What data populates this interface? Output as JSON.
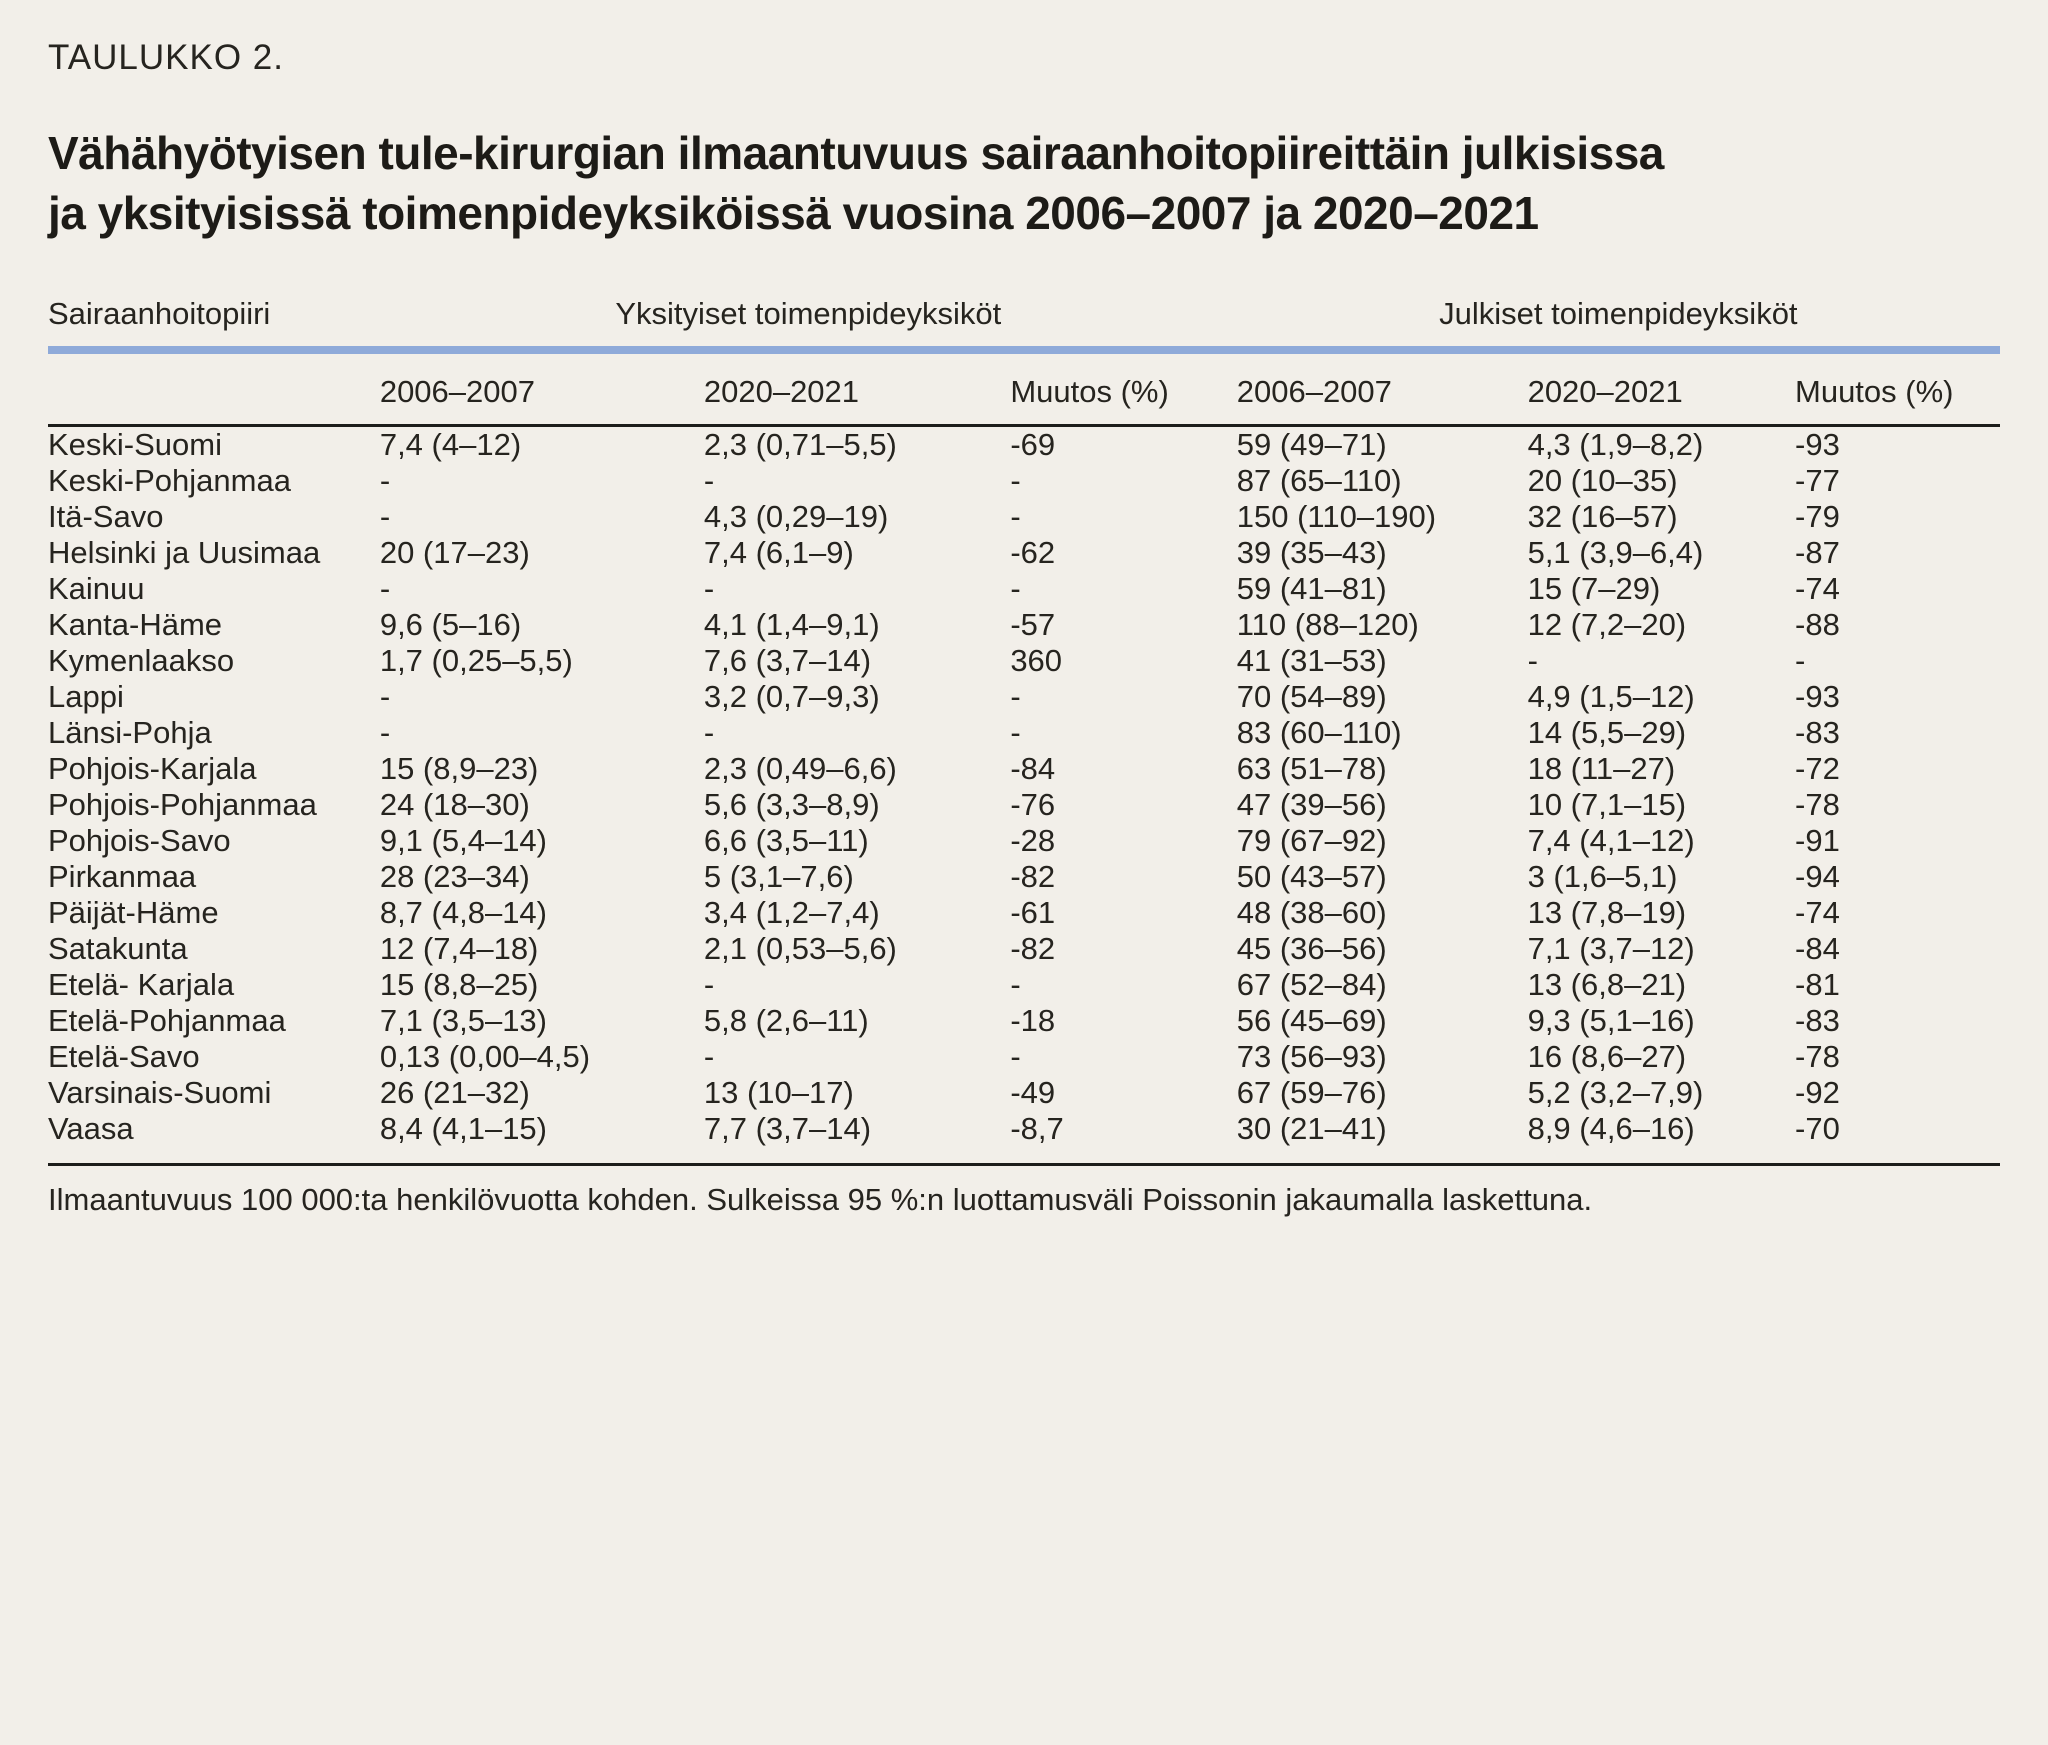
{
  "page": {
    "background_color": "#f2efe9",
    "text_color": "#1d1d1b",
    "accent_blue": "#8faad9",
    "table_label": "TAULUKKO 2.",
    "title_line1": "Vähähyötyisen tule-kirurgian ilmaantuvuus sairaanhoitopiireittäin julkisissa",
    "title_line2": "ja yksityisissä toimenpideyksiköissä vuosina 2006–2007 ja 2020–2021"
  },
  "table": {
    "region_header": "Sairaanhoitopiiri",
    "group_headers": {
      "private": "Yksityiset toimenpideyksiköt",
      "public": "Julkiset toimenpideyksiköt"
    },
    "sub_headers": [
      "2006–2007",
      "2020–2021",
      "Muutos (%)",
      "2006–2007",
      "2020–2021",
      "Muutos (%)"
    ],
    "rows": [
      [
        "Keski-Suomi",
        "7,4 (4–12)",
        "2,3 (0,71–5,5)",
        "-69",
        "59 (49–71)",
        "4,3 (1,9–8,2)",
        "-93"
      ],
      [
        "Keski-Pohjanmaa",
        "-",
        "-",
        "-",
        "87 (65–110)",
        "20 (10–35)",
        "-77"
      ],
      [
        "Itä-Savo",
        "-",
        "4,3 (0,29–19)",
        "-",
        "150 (110–190)",
        "32 (16–57)",
        "-79"
      ],
      [
        "Helsinki ja Uusimaa",
        "20 (17–23)",
        "7,4 (6,1–9)",
        "-62",
        "39 (35–43)",
        "5,1 (3,9–6,4)",
        "-87"
      ],
      [
        "Kainuu",
        "-",
        "-",
        "-",
        "59 (41–81)",
        "15 (7–29)",
        "-74"
      ],
      [
        "Kanta-Häme",
        "9,6 (5–16)",
        "4,1 (1,4–9,1)",
        "-57",
        "110 (88–120)",
        "12 (7,2–20)",
        "-88"
      ],
      [
        "Kymenlaakso",
        "1,7 (0,25–5,5)",
        "7,6 (3,7–14)",
        "360",
        "41 (31–53)",
        "-",
        "-"
      ],
      [
        "Lappi",
        "-",
        "3,2 (0,7–9,3)",
        "-",
        "70 (54–89)",
        "4,9 (1,5–12)",
        "-93"
      ],
      [
        "Länsi-Pohja",
        "-",
        "-",
        "-",
        "83 (60–110)",
        "14 (5,5–29)",
        "-83"
      ],
      [
        "Pohjois-Karjala",
        "15 (8,9–23)",
        "2,3 (0,49–6,6)",
        "-84",
        "63 (51–78)",
        "18 (11–27)",
        "-72"
      ],
      [
        "Pohjois-Pohjanmaa",
        "24 (18–30)",
        "5,6 (3,3–8,9)",
        "-76",
        "47 (39–56)",
        "10 (7,1–15)",
        "-78"
      ],
      [
        "Pohjois-Savo",
        "9,1 (5,4–14)",
        "6,6 (3,5–11)",
        "-28",
        "79 (67–92)",
        "7,4 (4,1–12)",
        "-91"
      ],
      [
        "Pirkanmaa",
        "28 (23–34)",
        "5 (3,1–7,6)",
        "-82",
        "50 (43–57)",
        "3 (1,6–5,1)",
        "-94"
      ],
      [
        "Päijät-Häme",
        "8,7 (4,8–14)",
        "3,4 (1,2–7,4)",
        "-61",
        "48 (38–60)",
        "13 (7,8–19)",
        "-74"
      ],
      [
        "Satakunta",
        "12 (7,4–18)",
        "2,1 (0,53–5,6)",
        "-82",
        "45 (36–56)",
        "7,1 (3,7–12)",
        "-84"
      ],
      [
        "Etelä- Karjala",
        "15 (8,8–25)",
        "-",
        "-",
        "67 (52–84)",
        "13 (6,8–21)",
        "-81"
      ],
      [
        "Etelä-Pohjanmaa",
        "7,1 (3,5–13)",
        "5,8 (2,6–11)",
        "-18",
        "56 (45–69)",
        "9,3 (5,1–16)",
        "-83"
      ],
      [
        "Etelä-Savo",
        "0,13 (0,00–4,5)",
        "-",
        "-",
        "73 (56–93)",
        "16 (8,6–27)",
        "-78"
      ],
      [
        "Varsinais-Suomi",
        "26 (21–32)",
        "13 (10–17)",
        "-49",
        "67 (59–76)",
        "5,2 (3,2–7,9)",
        "-92"
      ],
      [
        "Vaasa",
        "8,4 (4,1–15)",
        "7,7 (3,7–14)",
        "-8,7",
        "30 (21–41)",
        "8,9 (4,6–16)",
        "-70"
      ]
    ],
    "footnote": "Ilmaantuvuus 100 000:ta henkilövuotta kohden. Sulkeissa 95 %:n luottamusväli Poissonin jakaumalla laskettuna."
  }
}
